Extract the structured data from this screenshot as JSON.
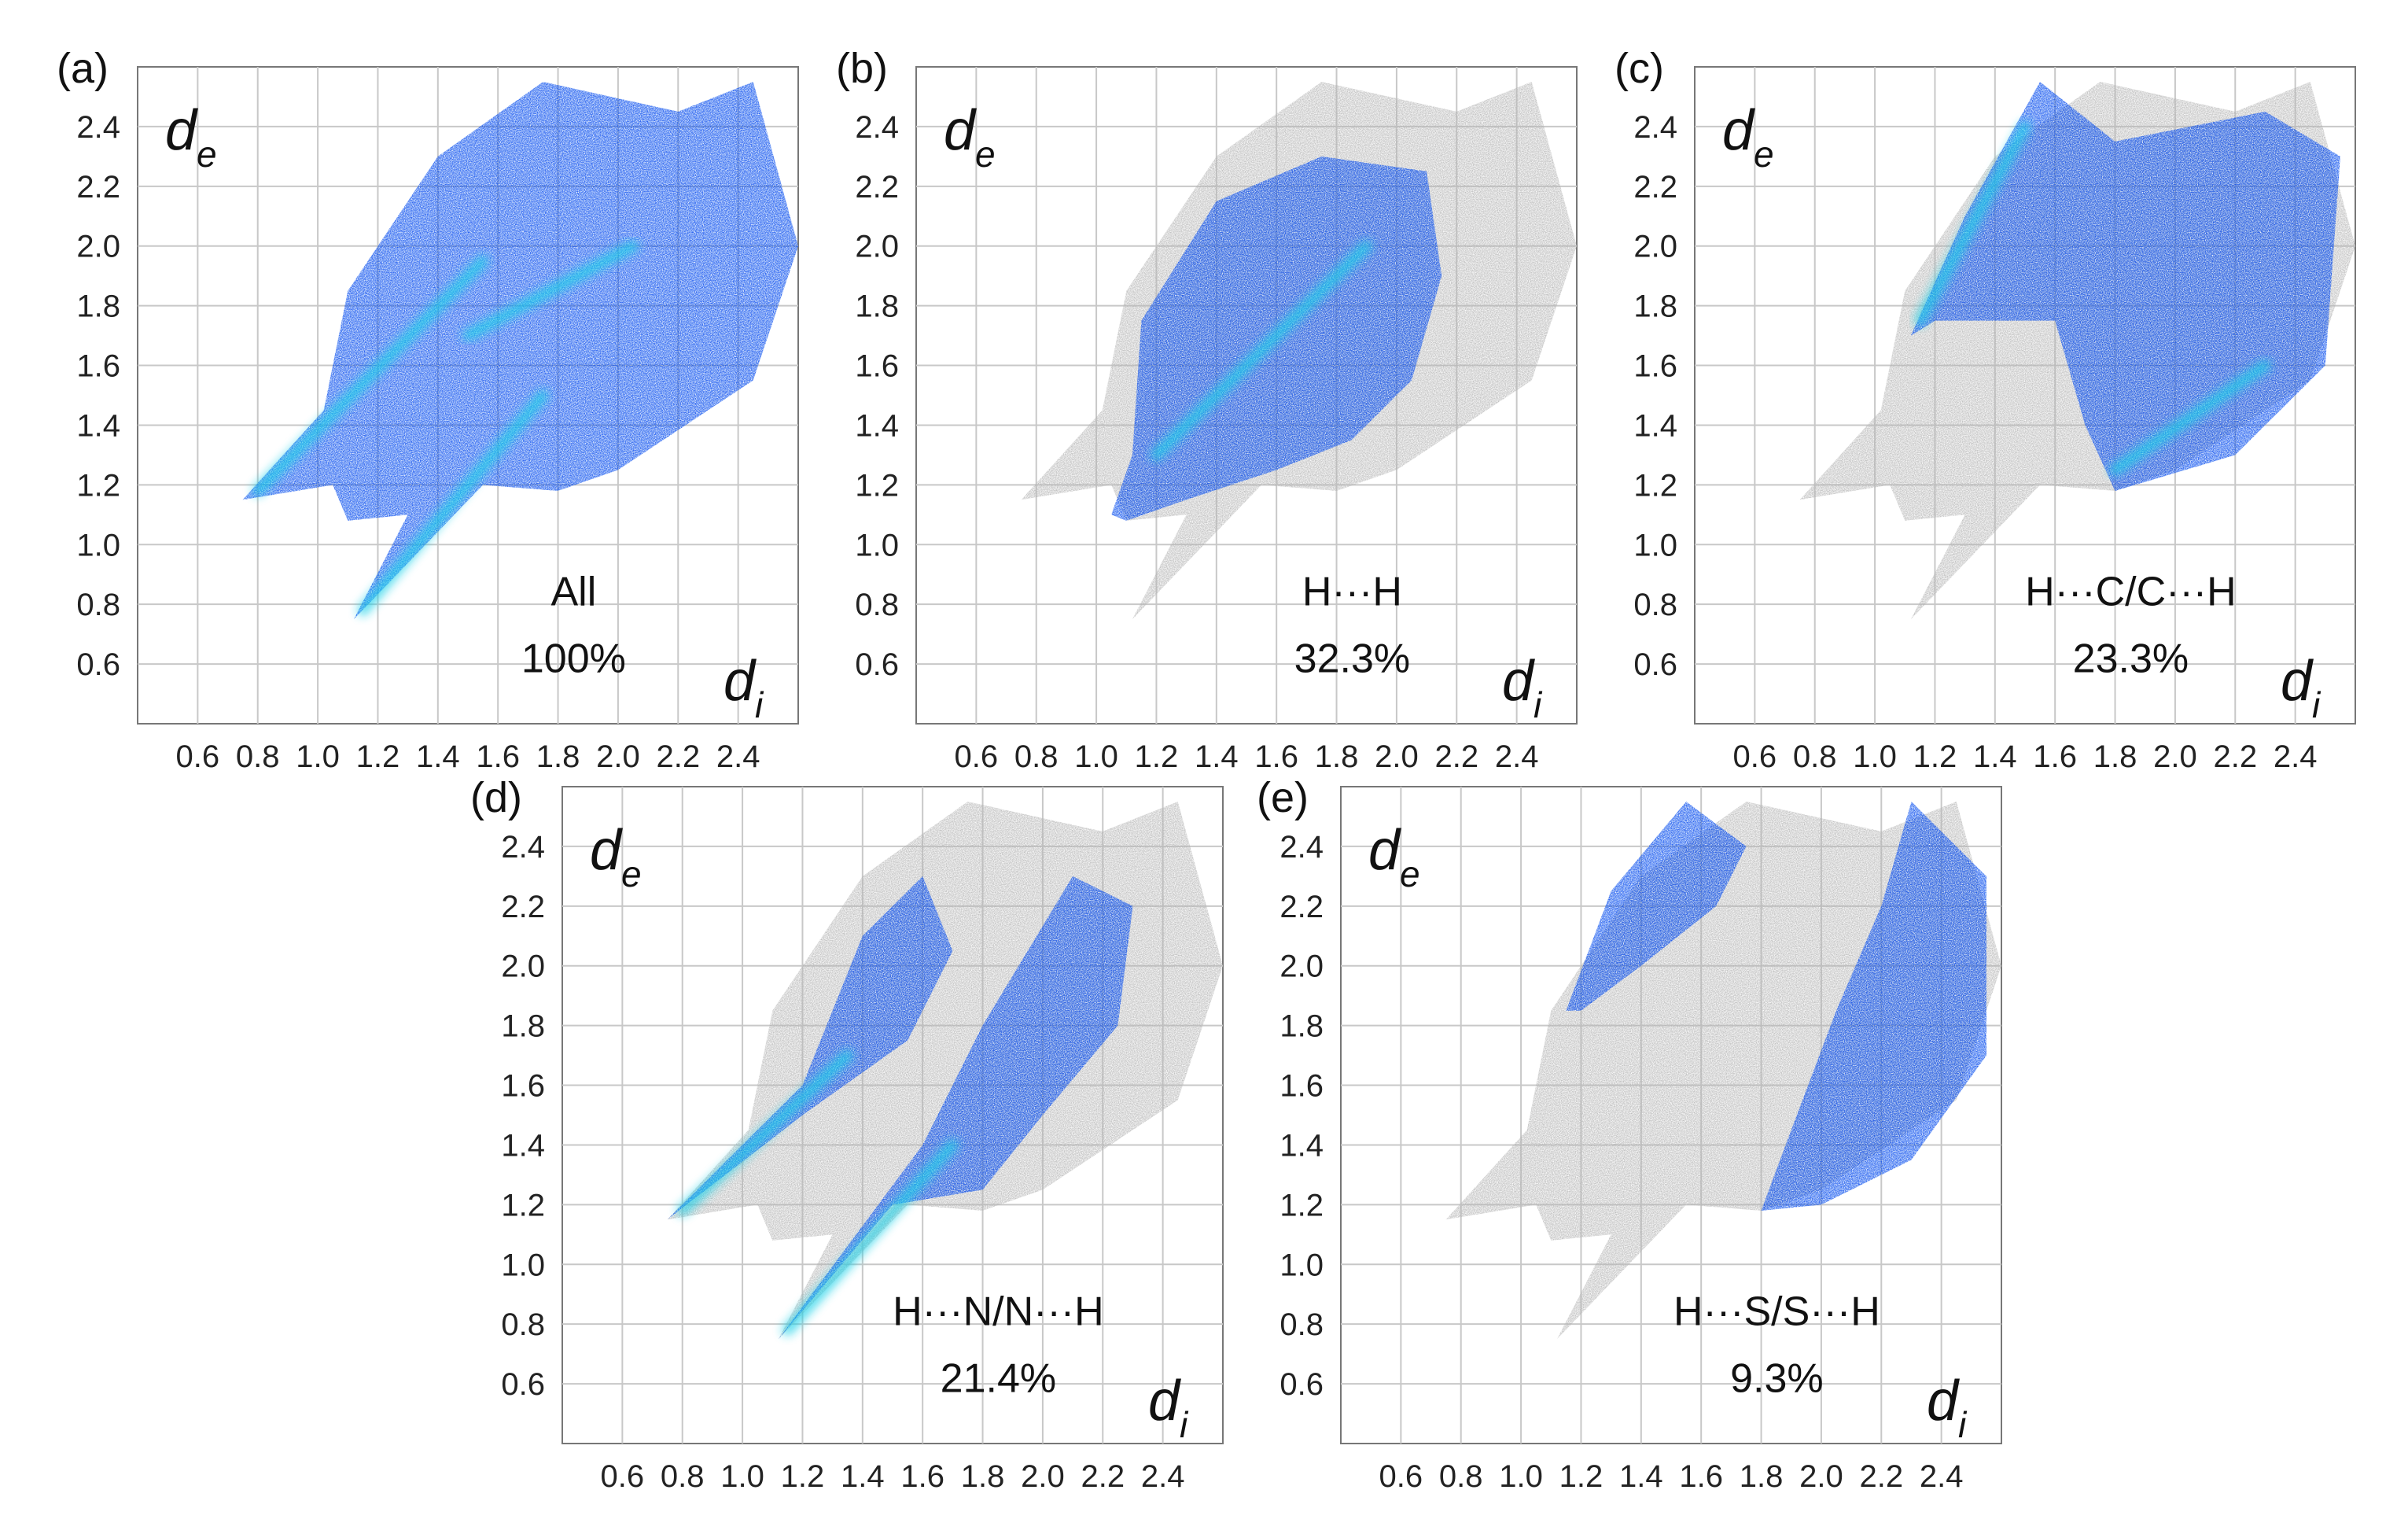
{
  "figure": {
    "description_labels": [
      "(a)",
      "(b)",
      "(c)",
      "(d)",
      "(e)"
    ]
  },
  "colors": {
    "background": "#ffffff",
    "grid": "#c8c8c8",
    "frame": "#777777",
    "highlight_dense": "#1fd1e8",
    "highlight_mid": "#0a62ff",
    "highlight_sparse": "#1020c8",
    "grey_cloud": "#b4b4b4"
  },
  "chart_data": [
    {
      "type": "scatter",
      "panel": "(a)",
      "title": "All",
      "percentage": "100%",
      "xlabel": "d_i",
      "ylabel": "d_e",
      "xlabel_main": "d",
      "xlabel_sub": "i",
      "ylabel_main": "d",
      "ylabel_sub": "e",
      "xlim": [
        0.4,
        2.6
      ],
      "ylim": [
        0.4,
        2.6
      ],
      "xticks": [
        "0.6",
        "0.8",
        "1.0",
        "1.2",
        "1.4",
        "1.6",
        "1.8",
        "2.0",
        "2.2",
        "2.4"
      ],
      "yticks": [
        "0.6",
        "0.8",
        "1.0",
        "1.2",
        "1.4",
        "1.6",
        "1.8",
        "2.0",
        "2.2",
        "2.4"
      ],
      "grid": true,
      "grey_region": null,
      "highlight_region": [
        [
          0.75,
          1.15
        ],
        [
          1.02,
          1.45
        ],
        [
          1.1,
          1.85
        ],
        [
          1.4,
          2.3
        ],
        [
          1.75,
          2.55
        ],
        [
          2.2,
          2.45
        ],
        [
          2.45,
          2.55
        ],
        [
          2.6,
          2.0
        ],
        [
          2.45,
          1.55
        ],
        [
          2.0,
          1.25
        ],
        [
          1.8,
          1.18
        ],
        [
          1.55,
          1.2
        ],
        [
          1.12,
          0.75
        ],
        [
          1.3,
          1.1
        ],
        [
          1.1,
          1.08
        ],
        [
          1.05,
          1.2
        ]
      ],
      "dense_ridges": [
        [
          [
            0.8,
            1.18
          ],
          [
            1.55,
            1.95
          ]
        ],
        [
          [
            1.15,
            0.78
          ],
          [
            1.75,
            1.5
          ]
        ],
        [
          [
            1.5,
            1.7
          ],
          [
            2.05,
            2.0
          ]
        ]
      ]
    },
    {
      "type": "scatter",
      "panel": "(b)",
      "title": "H···H",
      "percentage": "32.3%",
      "xlabel": "d_i",
      "ylabel": "d_e",
      "xlabel_main": "d",
      "xlabel_sub": "i",
      "ylabel_main": "d",
      "ylabel_sub": "e",
      "xlim": [
        0.4,
        2.6
      ],
      "ylim": [
        0.4,
        2.6
      ],
      "xticks": [
        "0.6",
        "0.8",
        "1.0",
        "1.2",
        "1.4",
        "1.6",
        "1.8",
        "2.0",
        "2.2",
        "2.4"
      ],
      "yticks": [
        "0.6",
        "0.8",
        "1.0",
        "1.2",
        "1.4",
        "1.6",
        "1.8",
        "2.0",
        "2.2",
        "2.4"
      ],
      "grid": true,
      "grey_region": [
        [
          0.75,
          1.15
        ],
        [
          1.02,
          1.45
        ],
        [
          1.1,
          1.85
        ],
        [
          1.4,
          2.3
        ],
        [
          1.75,
          2.55
        ],
        [
          2.2,
          2.45
        ],
        [
          2.45,
          2.55
        ],
        [
          2.6,
          2.0
        ],
        [
          2.45,
          1.55
        ],
        [
          2.0,
          1.25
        ],
        [
          1.8,
          1.18
        ],
        [
          1.55,
          1.2
        ],
        [
          1.12,
          0.75
        ],
        [
          1.3,
          1.1
        ],
        [
          1.1,
          1.08
        ],
        [
          1.05,
          1.2
        ]
      ],
      "highlight_region": [
        [
          1.05,
          1.1
        ],
        [
          1.12,
          1.3
        ],
        [
          1.15,
          1.75
        ],
        [
          1.4,
          2.15
        ],
        [
          1.75,
          2.3
        ],
        [
          2.1,
          2.25
        ],
        [
          2.15,
          1.9
        ],
        [
          2.05,
          1.55
        ],
        [
          1.85,
          1.35
        ],
        [
          1.6,
          1.25
        ],
        [
          1.3,
          1.15
        ],
        [
          1.1,
          1.08
        ]
      ],
      "dense_ridges": [
        [
          [
            1.2,
            1.3
          ],
          [
            1.9,
            2.0
          ]
        ]
      ]
    },
    {
      "type": "scatter",
      "panel": "(c)",
      "title": "H···C/C···H",
      "percentage": "23.3%",
      "xlabel": "d_i",
      "ylabel": "d_e",
      "xlabel_main": "d",
      "xlabel_sub": "i",
      "ylabel_main": "d",
      "ylabel_sub": "e",
      "xlim": [
        0.4,
        2.6
      ],
      "ylim": [
        0.4,
        2.6
      ],
      "xticks": [
        "0.6",
        "0.8",
        "1.0",
        "1.2",
        "1.4",
        "1.6",
        "1.8",
        "2.0",
        "2.2",
        "2.4"
      ],
      "yticks": [
        "0.6",
        "0.8",
        "1.0",
        "1.2",
        "1.4",
        "1.6",
        "1.8",
        "2.0",
        "2.2",
        "2.4"
      ],
      "grid": true,
      "grey_region": [
        [
          0.75,
          1.15
        ],
        [
          1.02,
          1.45
        ],
        [
          1.1,
          1.85
        ],
        [
          1.4,
          2.3
        ],
        [
          1.75,
          2.55
        ],
        [
          2.2,
          2.45
        ],
        [
          2.45,
          2.55
        ],
        [
          2.6,
          2.0
        ],
        [
          2.45,
          1.55
        ],
        [
          2.0,
          1.25
        ],
        [
          1.8,
          1.18
        ],
        [
          1.55,
          1.2
        ],
        [
          1.12,
          0.75
        ],
        [
          1.3,
          1.1
        ],
        [
          1.1,
          1.08
        ],
        [
          1.05,
          1.2
        ]
      ],
      "highlight_region": [
        [
          1.12,
          1.7
        ],
        [
          1.3,
          2.1
        ],
        [
          1.55,
          2.55
        ],
        [
          1.8,
          2.35
        ],
        [
          2.3,
          2.45
        ],
        [
          2.55,
          2.3
        ],
        [
          2.5,
          1.6
        ],
        [
          2.2,
          1.3
        ],
        [
          1.8,
          1.18
        ],
        [
          1.7,
          1.4
        ],
        [
          1.6,
          1.75
        ],
        [
          1.4,
          1.75
        ],
        [
          1.2,
          1.75
        ]
      ],
      "dense_ridges": [
        [
          [
            1.15,
            1.75
          ],
          [
            1.5,
            2.4
          ]
        ],
        [
          [
            1.8,
            1.25
          ],
          [
            2.3,
            1.6
          ]
        ]
      ]
    },
    {
      "type": "scatter",
      "panel": "(d)",
      "title": "H···N/N···H",
      "percentage": "21.4%",
      "xlabel": "d_i",
      "ylabel": "d_e",
      "xlabel_main": "d",
      "xlabel_sub": "i",
      "ylabel_main": "d",
      "ylabel_sub": "e",
      "xlim": [
        0.4,
        2.6
      ],
      "ylim": [
        0.4,
        2.6
      ],
      "xticks": [
        "0.6",
        "0.8",
        "1.0",
        "1.2",
        "1.4",
        "1.6",
        "1.8",
        "2.0",
        "2.2",
        "2.4"
      ],
      "yticks": [
        "0.6",
        "0.8",
        "1.0",
        "1.2",
        "1.4",
        "1.6",
        "1.8",
        "2.0",
        "2.2",
        "2.4"
      ],
      "grid": true,
      "grey_region": [
        [
          0.75,
          1.15
        ],
        [
          1.02,
          1.45
        ],
        [
          1.1,
          1.85
        ],
        [
          1.4,
          2.3
        ],
        [
          1.75,
          2.55
        ],
        [
          2.2,
          2.45
        ],
        [
          2.45,
          2.55
        ],
        [
          2.6,
          2.0
        ],
        [
          2.45,
          1.55
        ],
        [
          2.0,
          1.25
        ],
        [
          1.8,
          1.18
        ],
        [
          1.55,
          1.2
        ],
        [
          1.12,
          0.75
        ],
        [
          1.3,
          1.1
        ],
        [
          1.1,
          1.08
        ],
        [
          1.05,
          1.2
        ]
      ],
      "highlight_region": [
        [
          0.75,
          1.15
        ],
        [
          1.2,
          1.6
        ],
        [
          1.4,
          2.1
        ],
        [
          1.6,
          2.3
        ],
        [
          1.7,
          2.05
        ],
        [
          1.55,
          1.75
        ],
        [
          1.2,
          1.5
        ]
      ],
      "highlight_region_2": [
        [
          1.12,
          0.75
        ],
        [
          1.6,
          1.4
        ],
        [
          1.8,
          1.8
        ],
        [
          2.1,
          2.3
        ],
        [
          2.3,
          2.2
        ],
        [
          2.25,
          1.8
        ],
        [
          2.0,
          1.5
        ],
        [
          1.8,
          1.25
        ],
        [
          1.5,
          1.2
        ]
      ],
      "dense_ridges": [
        [
          [
            0.8,
            1.18
          ],
          [
            1.35,
            1.7
          ]
        ],
        [
          [
            1.15,
            0.78
          ],
          [
            1.7,
            1.4
          ]
        ]
      ]
    },
    {
      "type": "scatter",
      "panel": "(e)",
      "title": "H···S/S···H",
      "percentage": "9.3%",
      "xlabel": "d_i",
      "ylabel": "d_e",
      "xlabel_main": "d",
      "xlabel_sub": "i",
      "ylabel_main": "d",
      "ylabel_sub": "e",
      "xlim": [
        0.4,
        2.6
      ],
      "ylim": [
        0.4,
        2.6
      ],
      "xticks": [
        "0.6",
        "0.8",
        "1.0",
        "1.2",
        "1.4",
        "1.6",
        "1.8",
        "2.0",
        "2.2",
        "2.4"
      ],
      "yticks": [
        "0.6",
        "0.8",
        "1.0",
        "1.2",
        "1.4",
        "1.6",
        "1.8",
        "2.0",
        "2.2",
        "2.4"
      ],
      "grid": true,
      "grey_region": [
        [
          0.75,
          1.15
        ],
        [
          1.02,
          1.45
        ],
        [
          1.1,
          1.85
        ],
        [
          1.4,
          2.3
        ],
        [
          1.75,
          2.55
        ],
        [
          2.2,
          2.45
        ],
        [
          2.45,
          2.55
        ],
        [
          2.6,
          2.0
        ],
        [
          2.45,
          1.55
        ],
        [
          2.0,
          1.25
        ],
        [
          1.8,
          1.18
        ],
        [
          1.55,
          1.2
        ],
        [
          1.12,
          0.75
        ],
        [
          1.3,
          1.1
        ],
        [
          1.1,
          1.08
        ],
        [
          1.05,
          1.2
        ]
      ],
      "highlight_region": [
        [
          1.15,
          1.85
        ],
        [
          1.3,
          2.25
        ],
        [
          1.55,
          2.55
        ],
        [
          1.75,
          2.4
        ],
        [
          1.65,
          2.2
        ],
        [
          1.4,
          2.0
        ],
        [
          1.2,
          1.85
        ]
      ],
      "highlight_region_2": [
        [
          1.8,
          1.18
        ],
        [
          1.9,
          1.45
        ],
        [
          2.05,
          1.85
        ],
        [
          2.2,
          2.2
        ],
        [
          2.3,
          2.55
        ],
        [
          2.55,
          2.3
        ],
        [
          2.55,
          1.7
        ],
        [
          2.3,
          1.35
        ],
        [
          2.0,
          1.2
        ]
      ],
      "dense_ridges": []
    }
  ]
}
